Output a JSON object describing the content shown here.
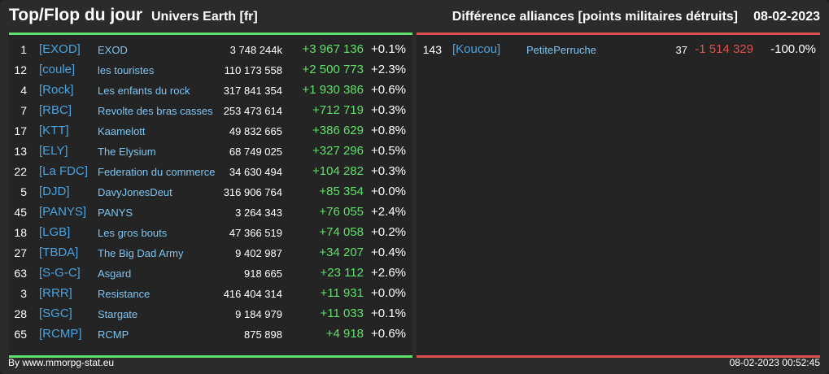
{
  "header": {
    "title": "Top/Flop du jour",
    "subtitle": "Univers Earth [fr]",
    "right_title": "Différence alliances [points militaires détruits]",
    "date": "08-02-2023"
  },
  "colors": {
    "gain": "#5fe06a",
    "loss": "#e0504c",
    "tag": "#4aa3df",
    "name": "#7ec4f0"
  },
  "top": [
    {
      "rank": "1",
      "tag": "[EXOD]",
      "name": "EXOD",
      "points": "3 748 244k",
      "diff": "+3 967 136",
      "pct": "+0.1%"
    },
    {
      "rank": "12",
      "tag": "[coule]",
      "name": "les touristes",
      "points": "110 173 558",
      "diff": "+2 500 773",
      "pct": "+2.3%"
    },
    {
      "rank": "4",
      "tag": "[Rock]",
      "name": "Les enfants du rock",
      "points": "317 841 354",
      "diff": "+1 930 386",
      "pct": "+0.6%"
    },
    {
      "rank": "7",
      "tag": "[RBC]",
      "name": "Revolte des bras casses",
      "points": "253 473 614",
      "diff": "+712 719",
      "pct": "+0.3%"
    },
    {
      "rank": "17",
      "tag": "[KTT]",
      "name": "Kaamelott",
      "points": "49 832 665",
      "diff": "+386 629",
      "pct": "+0.8%"
    },
    {
      "rank": "13",
      "tag": "[ELY]",
      "name": "The Elysium",
      "points": "68 749 025",
      "diff": "+327 296",
      "pct": "+0.5%"
    },
    {
      "rank": "22",
      "tag": "[La FDC]",
      "name": "Federation du commerce",
      "points": "34 630 494",
      "diff": "+104 282",
      "pct": "+0.3%"
    },
    {
      "rank": "5",
      "tag": "[DJD]",
      "name": "DavyJonesDeut",
      "points": "316 906 764",
      "diff": "+85 354",
      "pct": "+0.0%"
    },
    {
      "rank": "45",
      "tag": "[PANYS]",
      "name": "PANYS",
      "points": "3 264 343",
      "diff": "+76 055",
      "pct": "+2.4%"
    },
    {
      "rank": "18",
      "tag": "[LGB]",
      "name": "Les gros bouts",
      "points": "47 366 519",
      "diff": "+74 058",
      "pct": "+0.2%"
    },
    {
      "rank": "27",
      "tag": "[TBDA]",
      "name": "The Big Dad Army",
      "points": "9 402 987",
      "diff": "+34 207",
      "pct": "+0.4%"
    },
    {
      "rank": "63",
      "tag": "[S-G-C]",
      "name": "Asgard",
      "points": "918 665",
      "diff": "+23 112",
      "pct": "+2.6%"
    },
    {
      "rank": "3",
      "tag": "[RRR]",
      "name": "Resistance",
      "points": "416 404 314",
      "diff": "+11 931",
      "pct": "+0.0%"
    },
    {
      "rank": "28",
      "tag": "[SGC]",
      "name": "Stargate",
      "points": "9 184 979",
      "diff": "+11 033",
      "pct": "+0.1%"
    },
    {
      "rank": "65",
      "tag": "[RCMP]",
      "name": "RCMP",
      "points": "875 898",
      "diff": "+4 918",
      "pct": "+0.6%"
    }
  ],
  "flop": [
    {
      "rank": "143",
      "tag": "[Koucou]",
      "name": "PetitePerruche",
      "points": "37",
      "diff": "-1 514 329",
      "pct": "-100.0%"
    }
  ],
  "footer": {
    "left": "By www.mmorpg-stat.eu",
    "right": "08-02-2023 00:52:45"
  }
}
